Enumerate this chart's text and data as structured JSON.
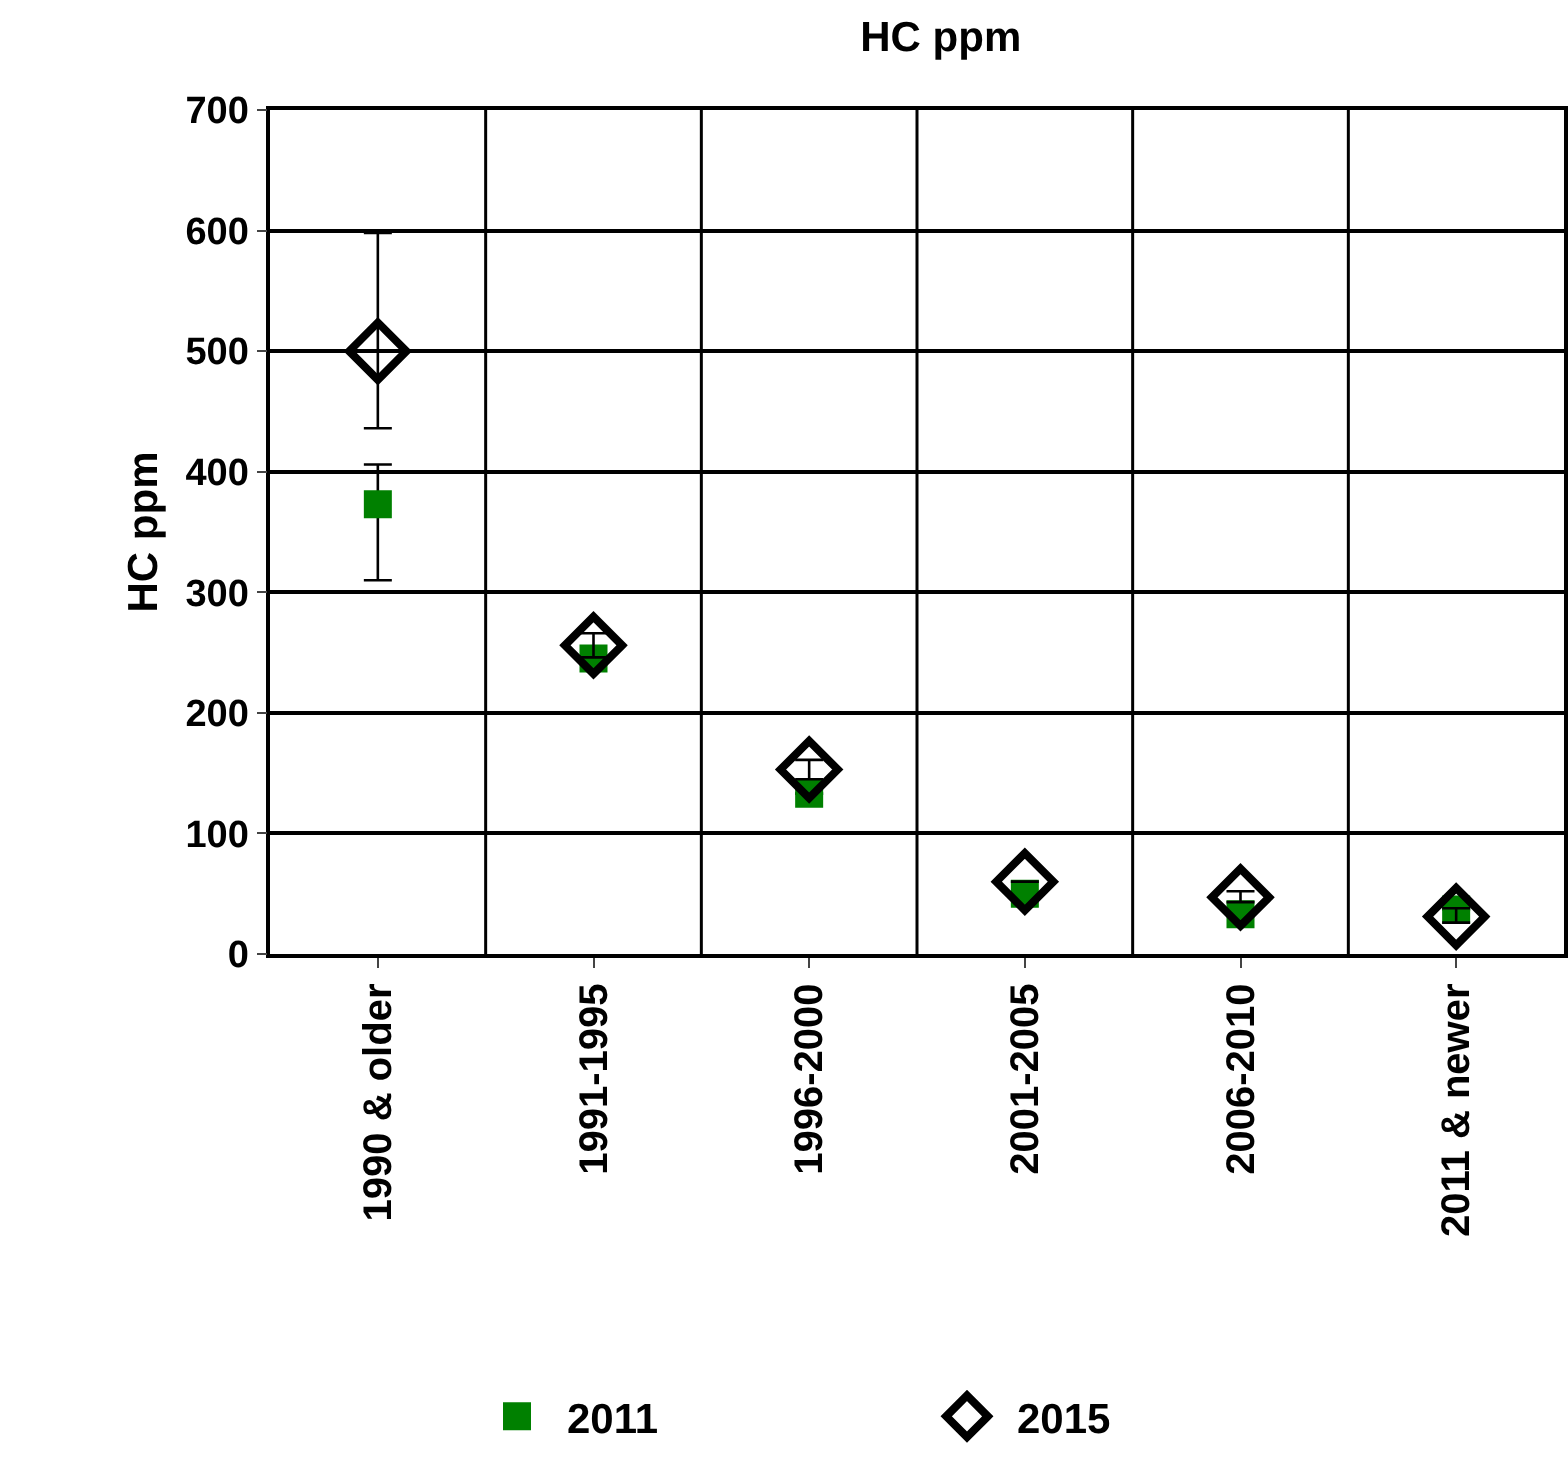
{
  "chart_data": {
    "type": "scatter",
    "title": "HC ppm",
    "ylabel": "HC ppm",
    "categories": [
      "1990 & older",
      "1991-1995",
      "1996-2000",
      "2001-2005",
      "2006-2010",
      "2011 & newer"
    ],
    "series": [
      {
        "name": "2011",
        "color": "#008000",
        "marker": "square",
        "values": [
          373,
          245,
          133,
          50,
          33,
          37
        ],
        "errors": [
          [
            310,
            406
          ],
          null,
          null,
          null,
          null,
          null
        ]
      },
      {
        "name": "2015",
        "color": "#000000",
        "marker": "diamond",
        "values": [
          500,
          256,
          153,
          60,
          47,
          31
        ],
        "errors": [
          [
            436,
            598
          ],
          [
            246,
            266
          ],
          [
            145,
            161
          ],
          null,
          [
            43,
            52
          ],
          [
            26,
            38
          ]
        ]
      }
    ],
    "ylim": [
      0,
      700
    ],
    "yticks": [
      0,
      100,
      200,
      300,
      400,
      500,
      600,
      700
    ],
    "grid": true,
    "legend": "bottom"
  }
}
